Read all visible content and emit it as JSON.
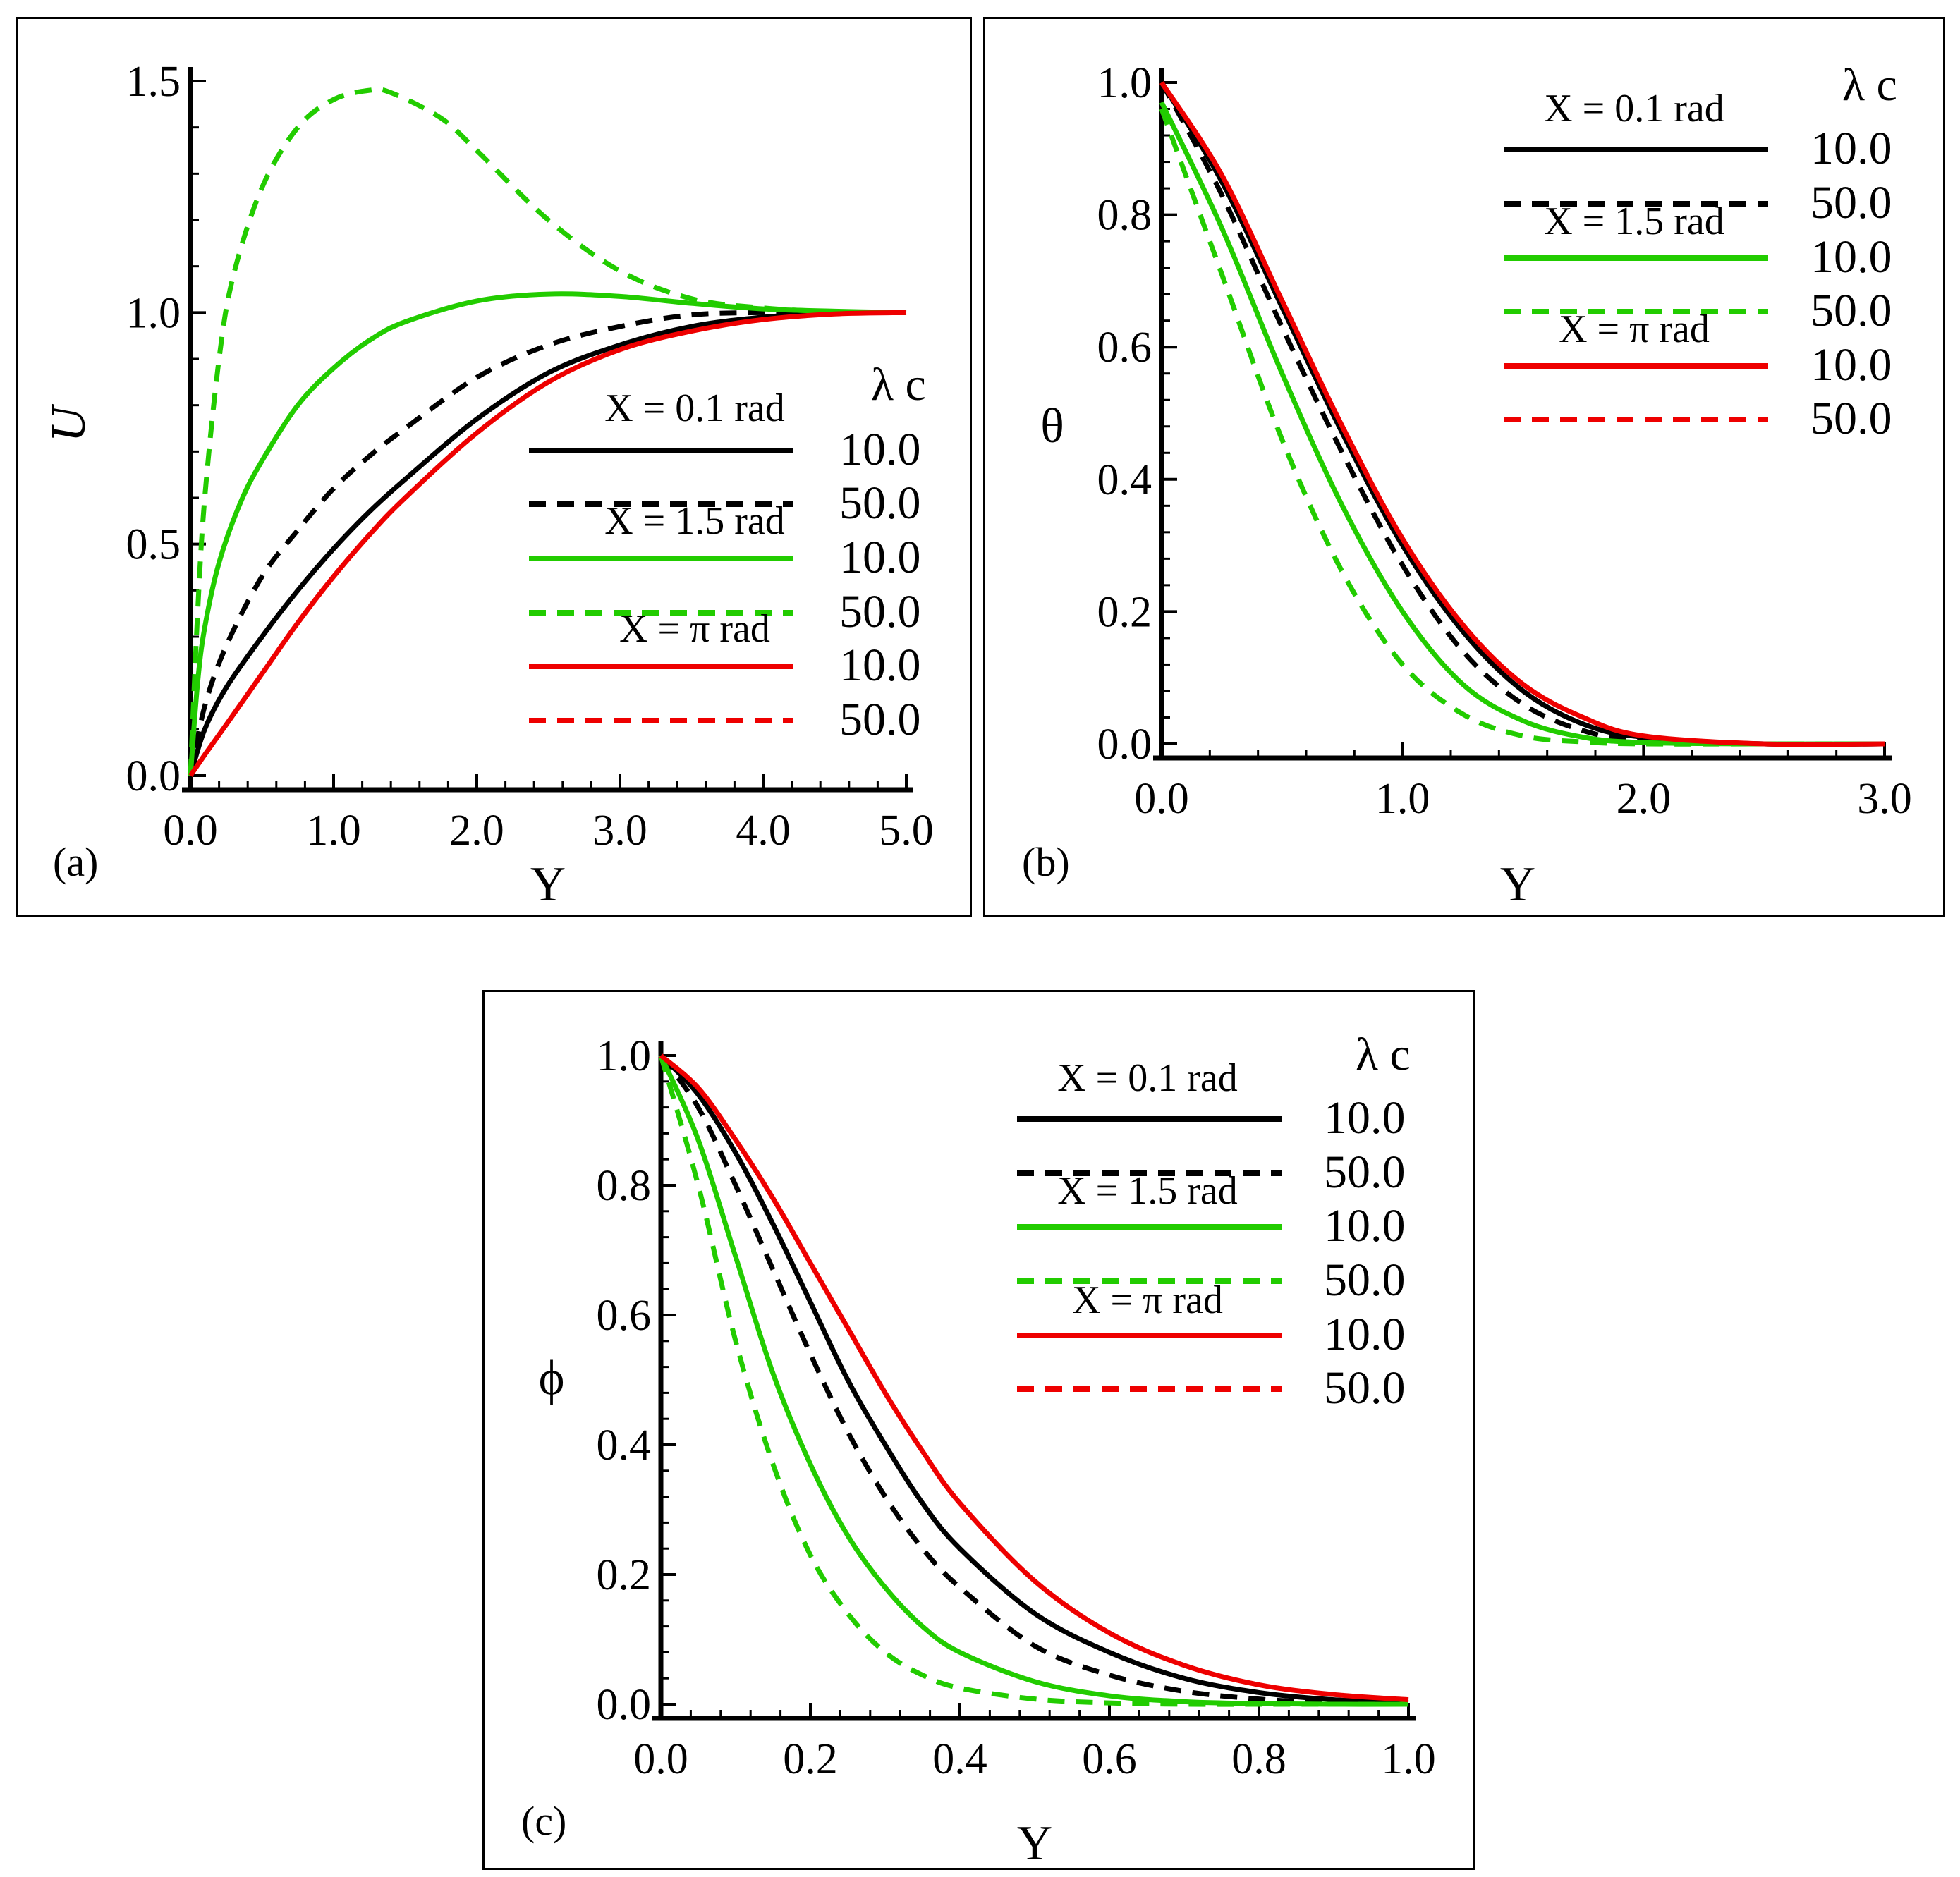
{
  "chart_data": [
    {
      "panel": "(a)",
      "type": "line",
      "xlabel": "Y",
      "ylabel": "U",
      "xlim": [
        0,
        5
      ],
      "ylim": [
        0,
        1.5
      ],
      "xticks": [
        "0.0",
        "1.0",
        "2.0",
        "3.0",
        "4.0",
        "5.0"
      ],
      "yticks": [
        "0.0",
        "0.5",
        "1.0",
        "1.5"
      ],
      "legend": {
        "title": "λ c",
        "groups": [
          {
            "label": "X = 0.1 rad",
            "color": "#000000",
            "values": [
              "10.0",
              "50.0"
            ]
          },
          {
            "label": "X = 1.5 rad",
            "color": "#22cc00",
            "values": [
              "10.0",
              "50.0"
            ]
          },
          {
            "label": "X = π rad",
            "color": "#ee0000",
            "values": [
              "10.0",
              "50.0"
            ]
          }
        ]
      },
      "series": [
        {
          "name": "X = 0.1 rad, λc = 10.0",
          "color": "#000000",
          "dash": false,
          "x": [
            0,
            0.1,
            0.25,
            0.5,
            0.75,
            1.0,
            1.25,
            1.5,
            2.0,
            2.5,
            3.0,
            3.5,
            4.0,
            4.5,
            5.0
          ],
          "y": [
            0,
            0.1,
            0.19,
            0.3,
            0.4,
            0.49,
            0.57,
            0.64,
            0.77,
            0.87,
            0.93,
            0.97,
            0.99,
            1.0,
            1.0
          ]
        },
        {
          "name": "X = 0.1 rad, λc = 50.0",
          "color": "#000000",
          "dash": true,
          "x": [
            0,
            0.1,
            0.25,
            0.5,
            0.75,
            1.0,
            1.25,
            1.5,
            2.0,
            2.5,
            3.0,
            3.5,
            4.0,
            4.5,
            5.0
          ],
          "y": [
            0,
            0.15,
            0.28,
            0.43,
            0.53,
            0.62,
            0.69,
            0.75,
            0.86,
            0.93,
            0.97,
            0.995,
            1.0,
            1.0,
            1.0
          ]
        },
        {
          "name": "X = 1.5 rad, λc = 10.0",
          "color": "#22cc00",
          "dash": false,
          "x": [
            0,
            0.05,
            0.1,
            0.2,
            0.35,
            0.5,
            0.75,
            1.0,
            1.25,
            1.5,
            2.0,
            2.5,
            3.0,
            3.5,
            4.0,
            4.5,
            5.0
          ],
          "y": [
            0,
            0.2,
            0.32,
            0.46,
            0.59,
            0.68,
            0.8,
            0.88,
            0.94,
            0.98,
            1.025,
            1.04,
            1.035,
            1.02,
            1.008,
            1.003,
            1.0
          ]
        },
        {
          "name": "X = 1.5 rad, λc = 50.0",
          "color": "#22cc00",
          "dash": true,
          "x": [
            0,
            0.05,
            0.1,
            0.2,
            0.3,
            0.5,
            0.75,
            1.0,
            1.25,
            1.4,
            1.75,
            2.0,
            2.5,
            3.0,
            3.5,
            4.0,
            4.5,
            5.0
          ],
          "y": [
            0,
            0.35,
            0.6,
            0.9,
            1.08,
            1.27,
            1.4,
            1.46,
            1.48,
            1.475,
            1.42,
            1.35,
            1.2,
            1.09,
            1.03,
            1.01,
            1.002,
            1.0
          ]
        },
        {
          "name": "X = π rad, λc = 10.0",
          "color": "#ee0000",
          "dash": false,
          "x": [
            0,
            0.1,
            0.25,
            0.5,
            0.75,
            1.0,
            1.25,
            1.5,
            2.0,
            2.5,
            3.0,
            3.5,
            4.0,
            4.5,
            5.0
          ],
          "y": [
            0,
            0.045,
            0.11,
            0.22,
            0.33,
            0.43,
            0.52,
            0.6,
            0.74,
            0.85,
            0.92,
            0.96,
            0.985,
            0.997,
            1.0
          ]
        }
      ]
    },
    {
      "panel": "(b)",
      "type": "line",
      "xlabel": "Y",
      "ylabel": "θ",
      "xlim": [
        0,
        3
      ],
      "ylim": [
        0,
        1
      ],
      "xticks": [
        "0.0",
        "1.0",
        "2.0",
        "3.0"
      ],
      "yticks": [
        "0.0",
        "0.2",
        "0.4",
        "0.6",
        "0.8",
        "1.0"
      ],
      "legend": {
        "title": "λ c",
        "groups": [
          {
            "label": "X = 0.1 rad",
            "color": "#000000",
            "values": [
              "10.0",
              "50.0"
            ]
          },
          {
            "label": "X = 1.5 rad",
            "color": "#22cc00",
            "values": [
              "10.0",
              "50.0"
            ]
          },
          {
            "label": "X = π rad",
            "color": "#ee0000",
            "values": [
              "10.0",
              "50.0"
            ]
          }
        ]
      },
      "series": [
        {
          "name": "X = 0.1 rad, λc = 10.0",
          "color": "#000000",
          "dash": false,
          "x": [
            0,
            0.25,
            0.5,
            0.75,
            1.0,
            1.25,
            1.5,
            1.75,
            2.0,
            2.5,
            3.0
          ],
          "y": [
            1.0,
            0.85,
            0.66,
            0.47,
            0.3,
            0.17,
            0.08,
            0.03,
            0.01,
            0.0,
            0.0
          ]
        },
        {
          "name": "X = 0.1 rad, λc = 50.0",
          "color": "#000000",
          "dash": true,
          "x": [
            0,
            0.25,
            0.5,
            0.75,
            1.0,
            1.25,
            1.5,
            1.75,
            2.0,
            2.5,
            3.0
          ],
          "y": [
            1.0,
            0.83,
            0.63,
            0.44,
            0.27,
            0.14,
            0.06,
            0.02,
            0.005,
            0.0,
            0.0
          ]
        },
        {
          "name": "X = 1.5 rad, λc = 10.0",
          "color": "#22cc00",
          "dash": false,
          "x": [
            0,
            0.25,
            0.5,
            0.75,
            1.0,
            1.25,
            1.5,
            1.75,
            2.0,
            2.5,
            3.0
          ],
          "y": [
            0.97,
            0.78,
            0.56,
            0.36,
            0.2,
            0.09,
            0.035,
            0.01,
            0.002,
            0.0,
            0.0
          ]
        },
        {
          "name": "X = 1.5 rad, λc = 50.0",
          "color": "#22cc00",
          "dash": true,
          "x": [
            0,
            0.25,
            0.5,
            0.75,
            1.0,
            1.25,
            1.5,
            1.75,
            2.0,
            2.5,
            3.0
          ],
          "y": [
            0.96,
            0.71,
            0.46,
            0.26,
            0.12,
            0.045,
            0.012,
            0.003,
            0.0,
            0.0,
            0.0
          ]
        },
        {
          "name": "X = π rad, λc = 10.0",
          "color": "#ee0000",
          "dash": false,
          "x": [
            0,
            0.25,
            0.5,
            0.75,
            1.0,
            1.25,
            1.5,
            1.75,
            2.0,
            2.5,
            3.0
          ],
          "y": [
            1.0,
            0.86,
            0.67,
            0.48,
            0.31,
            0.18,
            0.09,
            0.04,
            0.012,
            0.0,
            0.0
          ]
        }
      ]
    },
    {
      "panel": "(c)",
      "type": "line",
      "xlabel": "Y",
      "ylabel": "ϕ",
      "xlim": [
        0,
        1
      ],
      "ylim": [
        0,
        1
      ],
      "xticks": [
        "0.0",
        "0.2",
        "0.4",
        "0.6",
        "0.8",
        "1.0"
      ],
      "yticks": [
        "0.0",
        "0.2",
        "0.4",
        "0.6",
        "0.8",
        "1.0"
      ],
      "legend": {
        "title": "λ c",
        "groups": [
          {
            "label": "X = 0.1 rad",
            "color": "#000000",
            "values": [
              "10.0",
              "50.0"
            ]
          },
          {
            "label": "X = 1.5 rad",
            "color": "#22cc00",
            "values": [
              "10.0",
              "50.0"
            ]
          },
          {
            "label": "X = π rad",
            "color": "#ee0000",
            "values": [
              "10.0",
              "50.0"
            ]
          }
        ]
      },
      "series": [
        {
          "name": "X = 0.1 rad, λc = 10.0",
          "color": "#000000",
          "dash": false,
          "x": [
            0,
            0.05,
            0.1,
            0.15,
            0.2,
            0.25,
            0.3,
            0.35,
            0.4,
            0.5,
            0.6,
            0.7,
            0.8,
            0.9,
            1.0
          ],
          "y": [
            1.0,
            0.94,
            0.85,
            0.74,
            0.62,
            0.5,
            0.4,
            0.31,
            0.24,
            0.14,
            0.08,
            0.04,
            0.018,
            0.007,
            0.003
          ]
        },
        {
          "name": "X = 0.1 rad, λc = 50.0",
          "color": "#000000",
          "dash": true,
          "x": [
            0,
            0.05,
            0.1,
            0.15,
            0.2,
            0.25,
            0.3,
            0.35,
            0.4,
            0.5,
            0.6,
            0.7,
            0.8,
            0.9,
            1.0
          ],
          "y": [
            1.0,
            0.92,
            0.8,
            0.67,
            0.54,
            0.42,
            0.32,
            0.24,
            0.18,
            0.09,
            0.045,
            0.02,
            0.008,
            0.002,
            0.0
          ]
        },
        {
          "name": "X = 1.5 rad, λc = 10.0",
          "color": "#22cc00",
          "dash": false,
          "x": [
            0,
            0.05,
            0.1,
            0.15,
            0.2,
            0.25,
            0.3,
            0.35,
            0.4,
            0.5,
            0.6,
            0.7,
            0.8,
            0.9,
            1.0
          ],
          "y": [
            1.0,
            0.87,
            0.69,
            0.51,
            0.37,
            0.26,
            0.18,
            0.12,
            0.08,
            0.035,
            0.013,
            0.004,
            0.001,
            0.0,
            0.0
          ]
        },
        {
          "name": "X = 1.5 rad, λc = 50.0",
          "color": "#22cc00",
          "dash": true,
          "x": [
            0,
            0.05,
            0.1,
            0.15,
            0.2,
            0.25,
            0.3,
            0.35,
            0.4,
            0.5,
            0.6,
            0.7,
            0.8,
            0.9,
            1.0
          ],
          "y": [
            1.0,
            0.8,
            0.56,
            0.37,
            0.23,
            0.14,
            0.08,
            0.045,
            0.025,
            0.008,
            0.002,
            0.0,
            0.0,
            0.0,
            0.0
          ]
        },
        {
          "name": "X = π rad, λc = 10.0",
          "color": "#ee0000",
          "dash": false,
          "x": [
            0,
            0.05,
            0.1,
            0.15,
            0.2,
            0.25,
            0.3,
            0.35,
            0.4,
            0.5,
            0.6,
            0.7,
            0.8,
            0.9,
            1.0
          ],
          "y": [
            1.0,
            0.95,
            0.87,
            0.78,
            0.68,
            0.58,
            0.48,
            0.39,
            0.31,
            0.19,
            0.11,
            0.06,
            0.03,
            0.015,
            0.007
          ]
        }
      ]
    }
  ]
}
